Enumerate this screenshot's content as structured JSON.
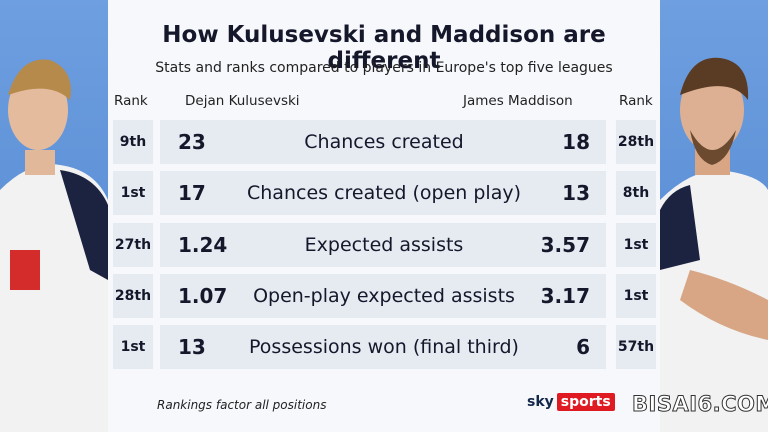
{
  "header": {
    "title": "How Kulusevski and Maddison are different",
    "subtitle": "Stats and ranks compared to players in Europe's top five leagues"
  },
  "columns": {
    "left_rank": "Rank",
    "left_player": "Dejan Kulusevski",
    "right_player": "James Maddison",
    "right_rank": "Rank"
  },
  "table": {
    "rows": [
      {
        "left_rank": "9th",
        "left_value": 23,
        "stat": "Chances created",
        "right_value": 18,
        "right_rank": "28th"
      },
      {
        "left_rank": "1st",
        "left_value": 17,
        "stat": "Chances created (open play)",
        "right_value": 13,
        "right_rank": "8th"
      },
      {
        "left_rank": "27th",
        "left_value": 1.24,
        "stat": "Expected assists",
        "right_value": 3.57,
        "right_rank": "1st"
      },
      {
        "left_rank": "28th",
        "left_value": 1.07,
        "stat": "Open-play expected assists",
        "right_value": 3.17,
        "right_rank": "1st"
      },
      {
        "left_rank": "1st",
        "left_value": 13,
        "stat": "Possessions won (final third)",
        "right_value": 6,
        "right_rank": "57th"
      }
    ]
  },
  "footer": {
    "note": "Rankings factor all positions",
    "logo_sky": "sky",
    "logo_sports": "sports",
    "watermark": "BISAI6.COM"
  }
}
